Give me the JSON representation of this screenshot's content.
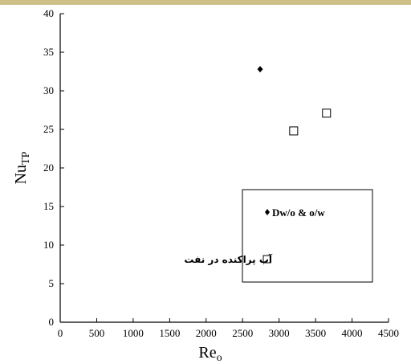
{
  "chart_data": {
    "type": "scatter",
    "title": "",
    "xlabel": "Re",
    "xlabel_subscript": "o",
    "ylabel": "Nu",
    "ylabel_subscript": "TP",
    "xlim": [
      0,
      4500
    ],
    "ylim": [
      0,
      40
    ],
    "x_ticks": [
      "0",
      "500",
      "1000",
      "1500",
      "2000",
      "2500",
      "3000",
      "3500",
      "4000",
      "4500"
    ],
    "y_ticks": [
      "0",
      "5",
      "10",
      "15",
      "20",
      "25",
      "30",
      "35",
      "40"
    ],
    "grid": false,
    "legend_position": "middle-right",
    "series": [
      {
        "name": "Dw/o & o/w",
        "marker": "filled-diamond",
        "color": "#000000",
        "points": [
          {
            "x": 2740,
            "y": 32.8
          }
        ]
      },
      {
        "name": "آب پراکنده در نفت",
        "marker": "open-square",
        "color": "#000000",
        "points": [
          {
            "x": 3200,
            "y": 24.8
          },
          {
            "x": 3650,
            "y": 27.1
          }
        ]
      }
    ]
  },
  "colors": {
    "band": "#cdbf86",
    "ink": "#000000",
    "background": "#ffffff"
  }
}
